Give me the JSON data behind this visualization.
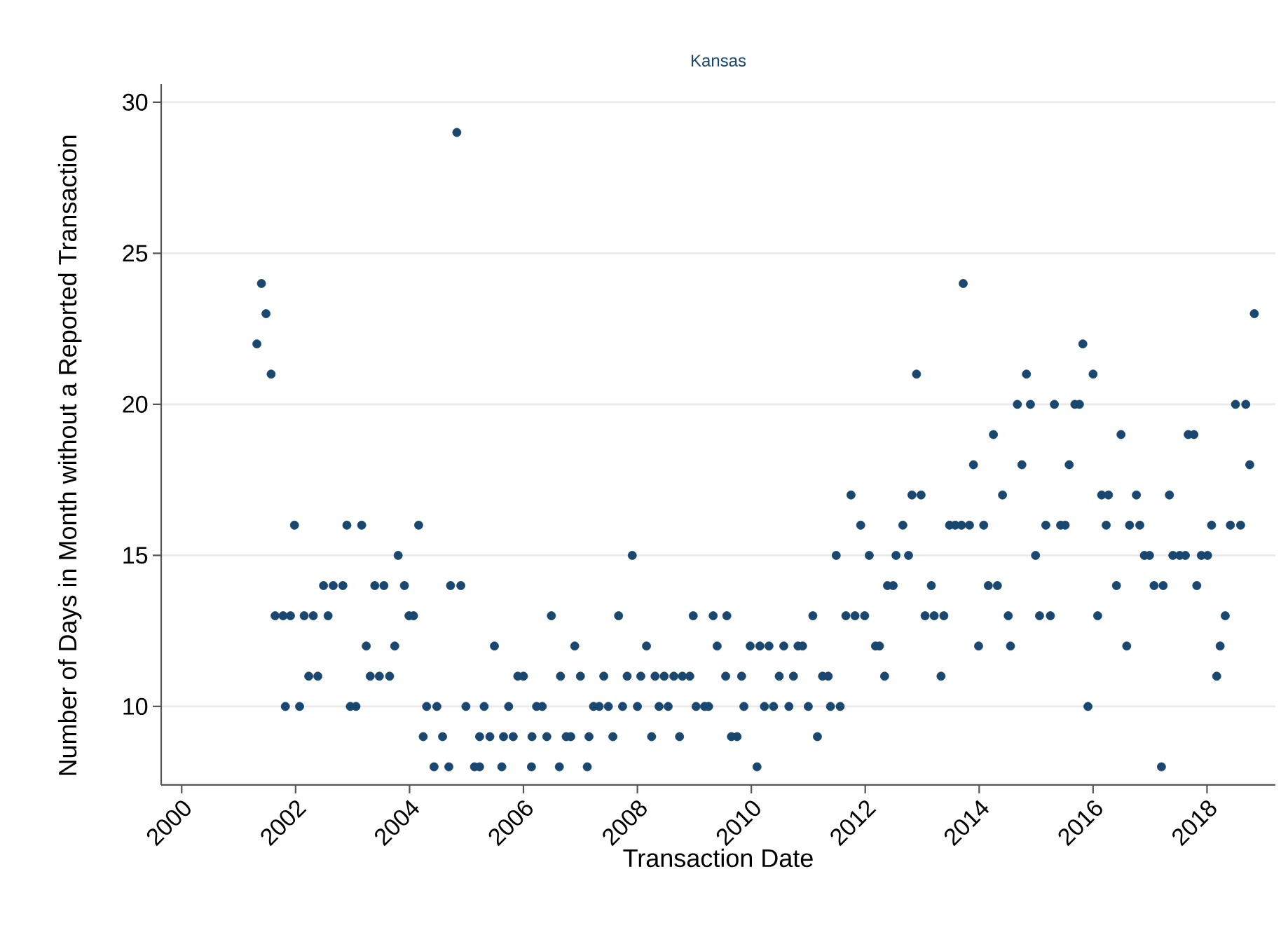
{
  "chart_data": {
    "type": "scatter",
    "title": "Kansas",
    "xlabel": "Transaction Date",
    "ylabel": "Number of Days in Month without a Reported Transaction",
    "x": [
      2001.32,
      2001.4,
      2001.48,
      2001.57,
      2001.64,
      2001.78,
      2001.82,
      2001.91,
      2001.98,
      2002.07,
      2002.15,
      2002.23,
      2002.31,
      2002.39,
      2002.49,
      2002.57,
      2002.66,
      2002.83,
      2002.9,
      2002.96,
      2003.06,
      2003.16,
      2003.24,
      2003.31,
      2003.39,
      2003.47,
      2003.55,
      2003.65,
      2003.74,
      2003.8,
      2003.91,
      2003.99,
      2004.07,
      2004.16,
      2004.24,
      2004.3,
      2004.43,
      2004.48,
      2004.58,
      2004.69,
      2004.72,
      2004.83,
      2004.9,
      2004.99,
      2005.14,
      2005.23,
      2005.23,
      2005.31,
      2005.41,
      2005.49,
      2005.62,
      2005.65,
      2005.74,
      2005.82,
      2005.9,
      2006.0,
      2006.14,
      2006.15,
      2006.23,
      2006.33,
      2006.41,
      2006.49,
      2006.63,
      2006.65,
      2006.75,
      2006.83,
      2006.9,
      2007.0,
      2007.12,
      2007.15,
      2007.23,
      2007.33,
      2007.41,
      2007.49,
      2007.57,
      2007.67,
      2007.74,
      2007.82,
      2007.91,
      2008.0,
      2008.06,
      2008.16,
      2008.25,
      2008.31,
      2008.38,
      2008.47,
      2008.54,
      2008.64,
      2008.74,
      2008.79,
      2008.92,
      2008.98,
      2009.03,
      2009.18,
      2009.25,
      2009.33,
      2009.4,
      2009.55,
      2009.57,
      2009.65,
      2009.75,
      2009.83,
      2009.87,
      2009.98,
      2010.1,
      2010.15,
      2010.23,
      2010.31,
      2010.39,
      2010.49,
      2010.57,
      2010.66,
      2010.74,
      2010.82,
      2010.9,
      2011.0,
      2011.08,
      2011.16,
      2011.25,
      2011.35,
      2011.39,
      2011.49,
      2011.56,
      2011.66,
      2011.75,
      2011.82,
      2011.92,
      2011.99,
      2012.07,
      2012.18,
      2012.25,
      2012.34,
      2012.39,
      2012.49,
      2012.54,
      2012.66,
      2012.76,
      2012.82,
      2012.9,
      2012.98,
      2013.05,
      2013.16,
      2013.21,
      2013.33,
      2013.38,
      2013.48,
      2013.58,
      2013.69,
      2013.72,
      2013.83,
      2013.9,
      2013.99,
      2014.08,
      2014.16,
      2014.25,
      2014.32,
      2014.41,
      2014.51,
      2014.55,
      2014.67,
      2014.75,
      2014.83,
      2014.9,
      2014.99,
      2015.06,
      2015.17,
      2015.25,
      2015.32,
      2015.43,
      2015.51,
      2015.58,
      2015.68,
      2015.76,
      2015.82,
      2015.91,
      2016.0,
      2016.08,
      2016.15,
      2016.23,
      2016.27,
      2016.41,
      2016.49,
      2016.59,
      2016.64,
      2016.76,
      2016.82,
      2016.9,
      2016.99,
      2017.07,
      2017.2,
      2017.23,
      2017.34,
      2017.4,
      2017.52,
      2017.62,
      2017.67,
      2017.77,
      2017.82,
      2017.9,
      2018.01,
      2018.08,
      2018.17,
      2018.23,
      2018.32,
      2018.41,
      2018.5,
      2018.59,
      2018.68,
      2018.75,
      2018.83
    ],
    "values": [
      22,
      24,
      23,
      21,
      13,
      13,
      10,
      13,
      16,
      10,
      13,
      11,
      13,
      11,
      14,
      13,
      14,
      14,
      16,
      10,
      10,
      16,
      12,
      11,
      14,
      11,
      14,
      11,
      12,
      15,
      14,
      13,
      13,
      16,
      9,
      10,
      8,
      10,
      9,
      8,
      14,
      29,
      14,
      10,
      8,
      8,
      9,
      10,
      9,
      12,
      8,
      9,
      10,
      9,
      11,
      11,
      8,
      9,
      10,
      10,
      9,
      13,
      8,
      11,
      9,
      9,
      12,
      11,
      8,
      9,
      10,
      10,
      11,
      10,
      9,
      13,
      10,
      11,
      15,
      10,
      11,
      12,
      9,
      11,
      10,
      11,
      10,
      11,
      9,
      11,
      11,
      13,
      10,
      10,
      10,
      13,
      12,
      11,
      13,
      9,
      9,
      11,
      10,
      12,
      8,
      12,
      10,
      12,
      10,
      11,
      12,
      10,
      11,
      12,
      12,
      10,
      13,
      9,
      11,
      11,
      10,
      15,
      10,
      13,
      17,
      13,
      16,
      13,
      15,
      12,
      12,
      11,
      14,
      14,
      15,
      16,
      15,
      17,
      21,
      17,
      13,
      14,
      13,
      11,
      13,
      16,
      16,
      16,
      24,
      16,
      18,
      12,
      16,
      14,
      19,
      14,
      17,
      13,
      12,
      20,
      18,
      21,
      20,
      15,
      13,
      16,
      13,
      20,
      16,
      16,
      18,
      20,
      20,
      22,
      10,
      21,
      13,
      17,
      16,
      17,
      14,
      19,
      12,
      16,
      17,
      16,
      15,
      15,
      14,
      8,
      14,
      17,
      15,
      15,
      15,
      19,
      19,
      14,
      15,
      15,
      16,
      11,
      12,
      13,
      16,
      20,
      16,
      20,
      18,
      23
    ],
    "color": "#1a476f",
    "marker": "circle",
    "grid": "y",
    "xlim": [
      1999.64,
      2019.2
    ],
    "xticks": [
      2000,
      2002,
      2004,
      2006,
      2008,
      2010,
      2012,
      2014,
      2016,
      2018
    ],
    "ylim": [
      7.4,
      30.6
    ],
    "yticks": [
      10,
      15,
      20,
      25,
      30
    ]
  }
}
